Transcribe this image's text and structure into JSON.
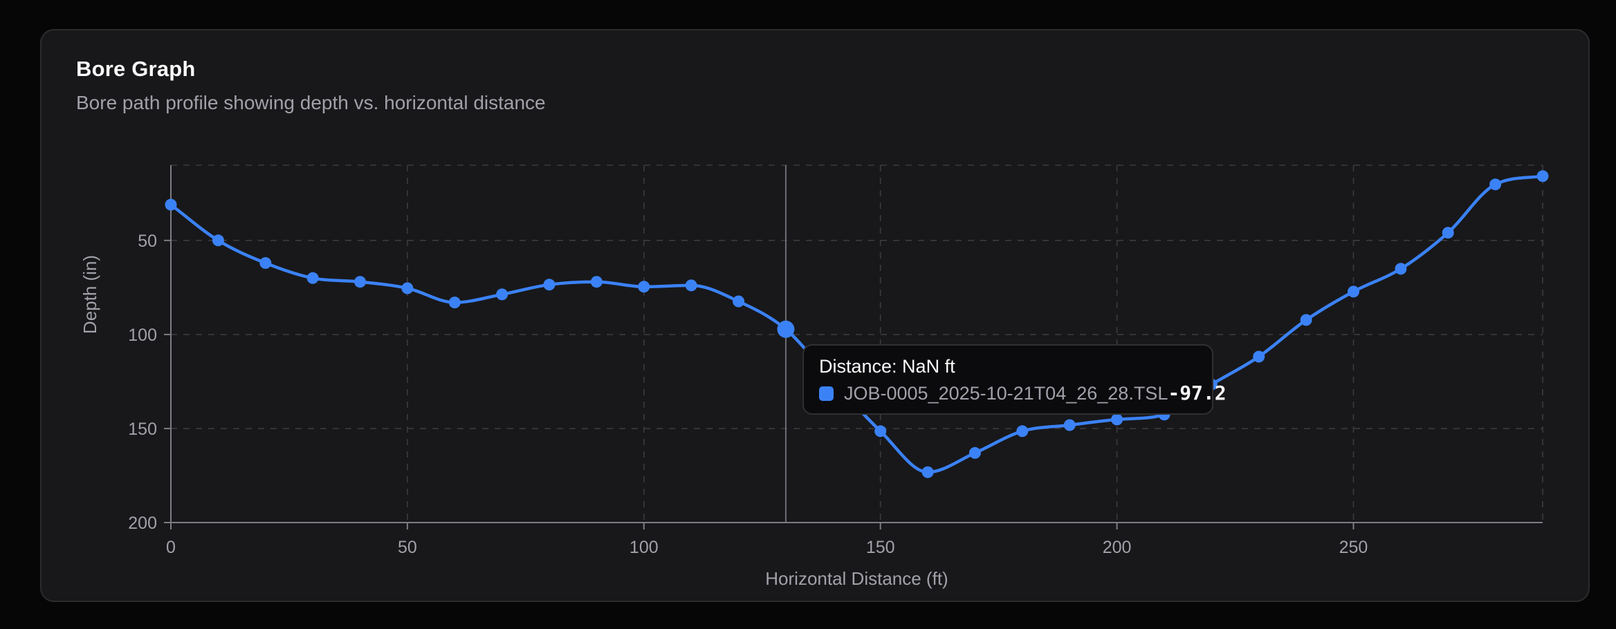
{
  "page": {
    "background": "#060607"
  },
  "card": {
    "title": "Bore Graph",
    "subtitle": "Bore path profile showing depth vs. horizontal distance",
    "background": "#18181a",
    "border_color": "#2c2c2f"
  },
  "chart_data": {
    "type": "line",
    "title": "Bore Graph",
    "xlabel": "Horizontal Distance (ft)",
    "ylabel": "Depth (in)",
    "x": [
      0,
      10,
      20,
      30,
      40,
      50,
      60,
      70,
      80,
      90,
      100,
      110,
      120,
      130,
      140,
      150,
      160,
      170,
      180,
      190,
      200,
      210,
      220,
      230,
      240,
      250,
      260,
      270,
      280,
      290
    ],
    "series": [
      {
        "name": "JOB-0005_2025-10-21T04_26_28.TSL",
        "color": "#3b82f6",
        "values": [
          31,
          50,
          62,
          70,
          72,
          75.4,
          83,
          78.7,
          73.5,
          72,
          74.6,
          73.9,
          82.4,
          97.2,
          125,
          151.4,
          173.2,
          163,
          151.4,
          148.2,
          145.2,
          142.6,
          126.6,
          111.8,
          92.3,
          77.2,
          65.1,
          45.9,
          20.2,
          15.8
        ]
      }
    ],
    "x_ticks": [
      0,
      50,
      100,
      150,
      200,
      250
    ],
    "y_ticks": [
      50,
      100,
      150,
      200
    ],
    "x_domain": [
      0,
      290
    ],
    "y_domain": [
      10,
      200
    ],
    "y_inverted_depth": true,
    "grid": "dashed",
    "legend": "none",
    "active_point": {
      "x": 130,
      "depth": 97.2
    },
    "cursor_x": 130,
    "colors": {
      "axis": "#7d7d85",
      "grid": "#3b3b40",
      "tick_text": "#a1a1aa",
      "cursor": "#6e6e76"
    }
  },
  "tooltip": {
    "header": "Distance: NaN ft",
    "series_name": "JOB-0005_2025-10-21T04_26_28.TSL",
    "value": "-97.2",
    "marker_color": "#3b82f6"
  }
}
